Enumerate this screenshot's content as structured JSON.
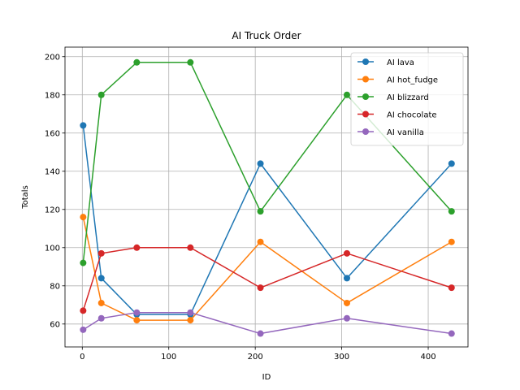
{
  "chart_data": {
    "type": "line",
    "title": "AI Truck Order",
    "xlabel": "ID",
    "ylabel": "Totals",
    "x": [
      1,
      22,
      63,
      125,
      206,
      306,
      427
    ],
    "xlim": [
      -20,
      446
    ],
    "ylim": [
      48,
      205
    ],
    "xticks": [
      0,
      100,
      200,
      300,
      400
    ],
    "yticks": [
      60,
      80,
      100,
      120,
      140,
      160,
      180,
      200
    ],
    "grid": true,
    "legend_position": "top-right",
    "series": [
      {
        "name": "AI lava",
        "color": "#1f77b4",
        "values": [
          164,
          84,
          65,
          65,
          144,
          84,
          144
        ]
      },
      {
        "name": "AI hot_fudge",
        "color": "#ff7f0e",
        "values": [
          116,
          71,
          62,
          62,
          103,
          71,
          103
        ]
      },
      {
        "name": "AI blizzard",
        "color": "#2ca02c",
        "values": [
          92,
          180,
          197,
          197,
          119,
          180,
          119
        ]
      },
      {
        "name": "AI chocolate",
        "color": "#d62728",
        "values": [
          67,
          97,
          100,
          100,
          79,
          97,
          79
        ]
      },
      {
        "name": "AI vanilla",
        "color": "#9467bd",
        "values": [
          57,
          63,
          66,
          66,
          55,
          63,
          55
        ]
      }
    ]
  }
}
